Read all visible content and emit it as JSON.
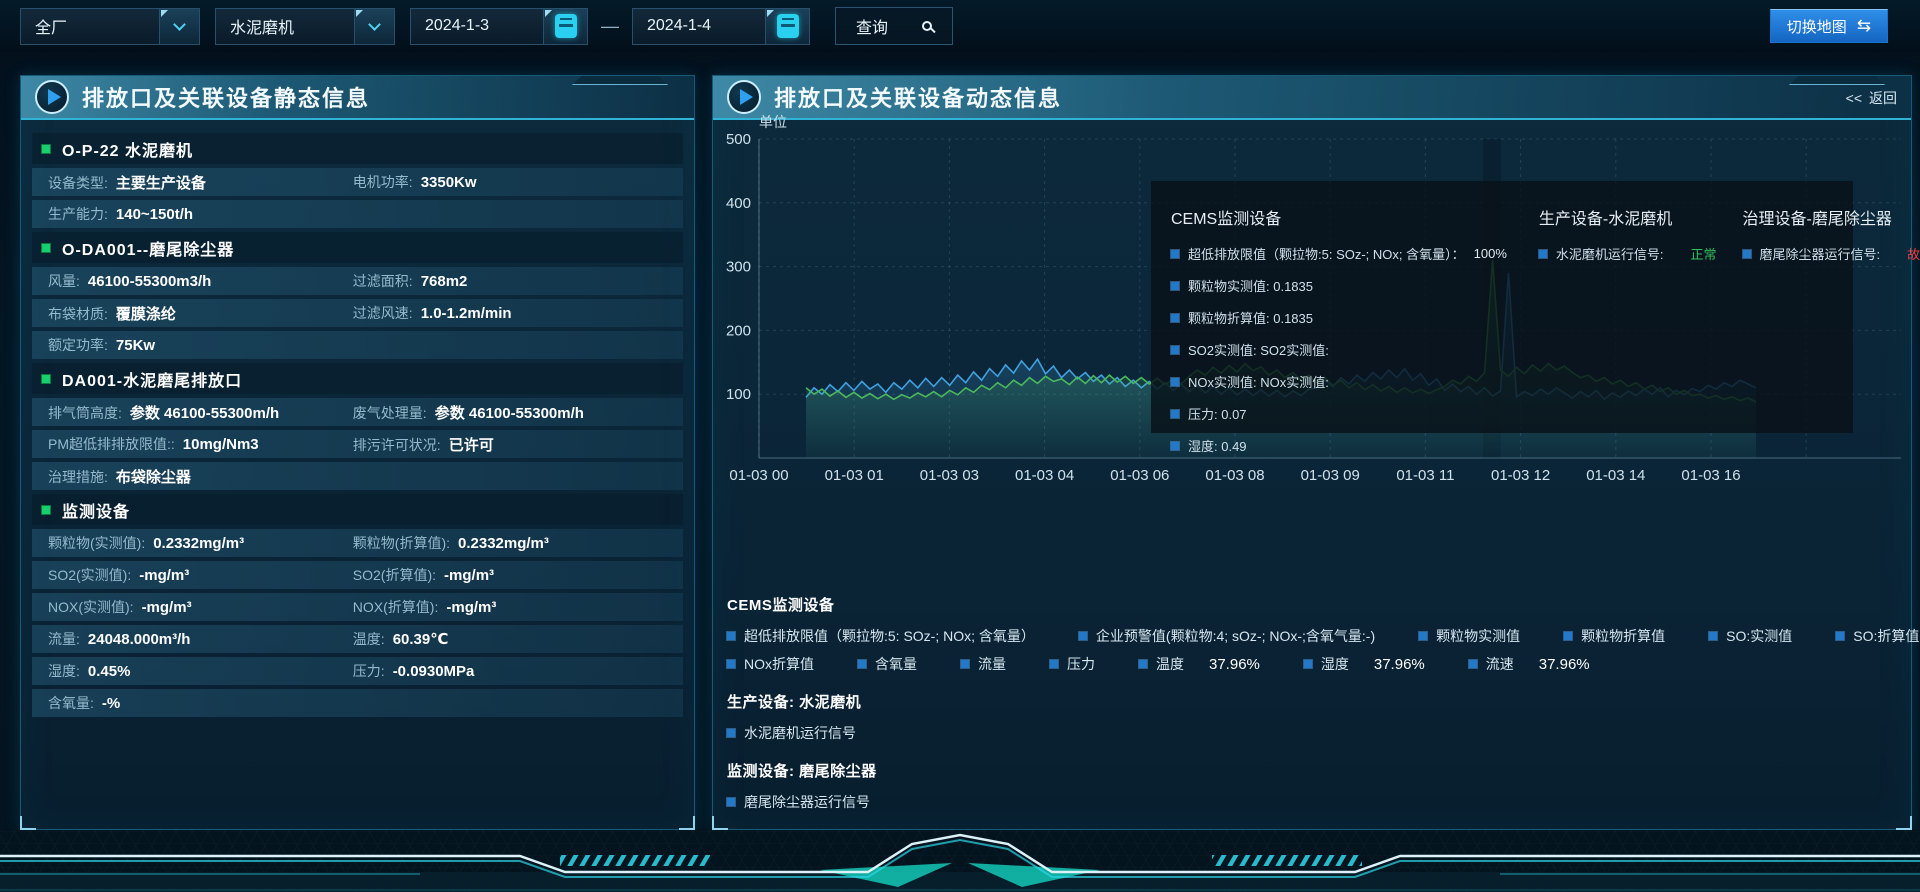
{
  "toolbar": {
    "plant_select": "全厂",
    "device_select": "水泥磨机",
    "date_from": "2024-1-3",
    "date_separator": "—",
    "date_to": "2024-1-4",
    "query_label": "查询",
    "switch_map_label": "切换地图",
    "switch_map_icon": "⇆"
  },
  "left_panel": {
    "title": "排放口及关联设备静态信息",
    "sections": [
      {
        "title": "O-P-22 水泥磨机",
        "rows": [
          [
            {
              "label": "设备类型:",
              "value": "主要生产设备"
            },
            {
              "label": "电机功率:",
              "value": "3350Kw"
            }
          ],
          [
            {
              "label": "生产能力:",
              "value": "140~150t/h"
            }
          ]
        ]
      },
      {
        "title": "O-DA001--磨尾除尘器",
        "rows": [
          [
            {
              "label": "风量:",
              "value": "46100-55300m3/h"
            },
            {
              "label": "过滤面积:",
              "value": "768m2"
            }
          ],
          [
            {
              "label": "布袋材质:",
              "value": "覆膜涤纶"
            },
            {
              "label": "过滤风速:",
              "value": "1.0-1.2m/min"
            }
          ],
          [
            {
              "label": "额定功率:",
              "value": "75Kw"
            }
          ]
        ]
      },
      {
        "title": "DA001-水泥磨尾排放口",
        "rows": [
          [
            {
              "label": "排气筒高度:",
              "value": "参数 46100-55300m/h"
            },
            {
              "label": "废气处理量:",
              "value": "参数 46100-55300m/h"
            }
          ],
          [
            {
              "label": "PM超低排排放限值::",
              "value": "10mg/Nm3"
            },
            {
              "label": "排污许可状况:",
              "value": "已许可"
            }
          ],
          [
            {
              "label": "治理措施:",
              "value": "布袋除尘器"
            }
          ]
        ]
      },
      {
        "title": "监测设备",
        "rows": [
          [
            {
              "label": "颗粒物(实测值):",
              "value": "0.2332mg/m³"
            },
            {
              "label": "颗粒物(折算值):",
              "value": "0.2332mg/m³"
            }
          ],
          [
            {
              "label": "SO2(实测值):",
              "value": "-mg/m³"
            },
            {
              "label": "SO2(折算值):",
              "value": "-mg/m³"
            }
          ],
          [
            {
              "label": "NOX(实测值):",
              "value": "-mg/m³"
            },
            {
              "label": "NOX(折算值):",
              "value": "-mg/m³"
            }
          ],
          [
            {
              "label": "流量:",
              "value": "24048.000m³/h"
            },
            {
              "label": "温度:",
              "value": "60.39℃"
            }
          ],
          [
            {
              "label": "湿度:",
              "value": "0.45%"
            },
            {
              "label": "压力:",
              "value": "-0.0930MPa"
            }
          ],
          [
            {
              "label": "含氧量:",
              "value": "-%"
            }
          ]
        ]
      }
    ]
  },
  "right_panel": {
    "title": "排放口及关联设备动态信息",
    "back_icon": "<<",
    "back_label": "返回",
    "y_axis_unit": "单位"
  },
  "tooltip": {
    "columns": [
      {
        "title": "CEMS监测设备",
        "items": [
          {
            "label": "超低排放限值（颗拉物:5: SOz-; NOx; 含氧量）：",
            "value": "100%",
            "value_color": ""
          },
          {
            "label": "颗粒物实测值: 0.1835",
            "value": "",
            "value_color": ""
          },
          {
            "label": "颗粒物折算值: 0.1835",
            "value": "",
            "value_color": ""
          },
          {
            "label": "SO2实测值: SO2实测值:",
            "value": "",
            "value_color": ""
          },
          {
            "label": "NOx实测值: NOx实测值:",
            "value": "",
            "value_color": ""
          },
          {
            "label": "压力: 0.07",
            "value": "",
            "value_color": ""
          },
          {
            "label": "湿度: 0.49",
            "value": "",
            "value_color": ""
          }
        ]
      },
      {
        "title": "生产设备-水泥磨机",
        "items": [
          {
            "label": "水泥磨机运行信号:",
            "value": "正常",
            "value_color": "#2fbf5f"
          }
        ]
      },
      {
        "title": "治理设备-磨尾除尘器",
        "items": [
          {
            "label": "磨尾除尘器运行信号:",
            "value": "故障",
            "value_color": "#e84040"
          }
        ]
      }
    ]
  },
  "legend": {
    "groups": [
      {
        "title": "CEMS监测设备",
        "rows": [
          [
            {
              "label": "超低排放限值（颗拉物:5: SOz-; NOx; 含氧量）",
              "value": ""
            },
            {
              "label": "企业预警值(颗粒物:4; sOz-; NOx-;含氧气量:-)",
              "value": ""
            },
            {
              "label": "颗粒物实测值",
              "value": ""
            },
            {
              "label": "颗粒物折算值",
              "value": ""
            },
            {
              "label": "SO:实测值",
              "value": ""
            },
            {
              "label": "SO:折算值",
              "value": ""
            },
            {
              "label": "NOx实测值",
              "value": ""
            }
          ],
          [
            {
              "label": "NOx折算值",
              "value": ""
            },
            {
              "label": "含氧量",
              "value": ""
            },
            {
              "label": "流量",
              "value": ""
            },
            {
              "label": "压力",
              "value": ""
            },
            {
              "label": "温度",
              "value": "37.96%"
            },
            {
              "label": "湿度",
              "value": "37.96%"
            },
            {
              "label": "流速",
              "value": "37.96%"
            }
          ]
        ]
      },
      {
        "title": "生产设备: 水泥磨机",
        "rows": [
          [
            {
              "label": "水泥磨机运行信号",
              "value": ""
            }
          ]
        ]
      },
      {
        "title": "监测设备: 磨尾除尘器",
        "rows": [
          [
            {
              "label": "磨尾除尘器运行信号",
              "value": ""
            }
          ]
        ]
      }
    ]
  },
  "chart_data": {
    "type": "line",
    "ylabel": "单位",
    "ylim": [
      0,
      500
    ],
    "y_ticks": [
      100,
      200,
      300,
      400,
      500
    ],
    "x_ticks": [
      "01-03 00",
      "01-03 01",
      "01-03 03",
      "01-03 04",
      "01-03 06",
      "01-03 08",
      "01-03 09",
      "01-03 11",
      "01-03 12",
      "01-03 14",
      "01-03 16"
    ],
    "grid": true,
    "legend_position": "bottom",
    "series": [
      {
        "name": "颗粒物实测值",
        "color": "#41a0e0",
        "values": [
          95,
          110,
          100,
          115,
          104,
          118,
          106,
          120,
          108,
          116,
          103,
          118,
          108,
          122,
          110,
          125,
          112,
          126,
          114,
          130,
          118,
          135,
          122,
          140,
          128,
          146,
          133,
          152,
          138,
          155,
          132,
          144,
          126,
          138,
          124,
          134,
          120,
          130,
          116,
          126,
          112,
          122,
          110,
          120,
          108,
          118,
          106,
          116,
          104,
          114,
          102,
          112,
          100,
          110,
          99,
          108,
          98,
          107,
          97,
          106,
          96,
          105,
          98,
          108,
          110,
          122,
          112,
          126,
          116,
          130,
          120,
          134,
          124,
          138,
          126,
          140,
          122,
          132,
          114,
          124,
          106,
          116,
          104,
          112,
          100,
          110,
          97,
          105,
          290,
          96,
          104,
          98,
          108,
          100,
          110,
          102,
          94,
          104,
          96,
          106,
          92,
          102,
          95,
          105,
          98,
          108,
          100,
          110,
          96,
          106,
          99,
          109,
          104,
          114,
          108,
          118,
          112,
          122,
          116,
          110
        ]
      },
      {
        "name": "颗粒物折算值",
        "color": "#4cb85c",
        "values": [
          110,
          100,
          108,
          97,
          105,
          95,
          103,
          94,
          101,
          93,
          100,
          92,
          99,
          94,
          102,
          96,
          104,
          96,
          106,
          99,
          110,
          103,
          114,
          107,
          118,
          110,
          122,
          114,
          126,
          117,
          128,
          120,
          124,
          115,
          127,
          117,
          129,
          118,
          130,
          119,
          128,
          117,
          126,
          116,
          125,
          115,
          124,
          116,
          128,
          138,
          130,
          142,
          133,
          145,
          135,
          148,
          137,
          143,
          130,
          138,
          126,
          134,
          122,
          130,
          118,
          126,
          114,
          122,
          110,
          118,
          107,
          115,
          105,
          112,
          103,
          110,
          102,
          108,
          101,
          107,
          112,
          122,
          116,
          128,
          120,
          134,
          310,
          138,
          128,
          142,
          132,
          146,
          136,
          148,
          138,
          144,
          134,
          126,
          130,
          120,
          126,
          116,
          122,
          112,
          118,
          108,
          114,
          104,
          110,
          100,
          106,
          98,
          100,
          94,
          98,
          92,
          96,
          90,
          94,
          88
        ]
      }
    ]
  }
}
